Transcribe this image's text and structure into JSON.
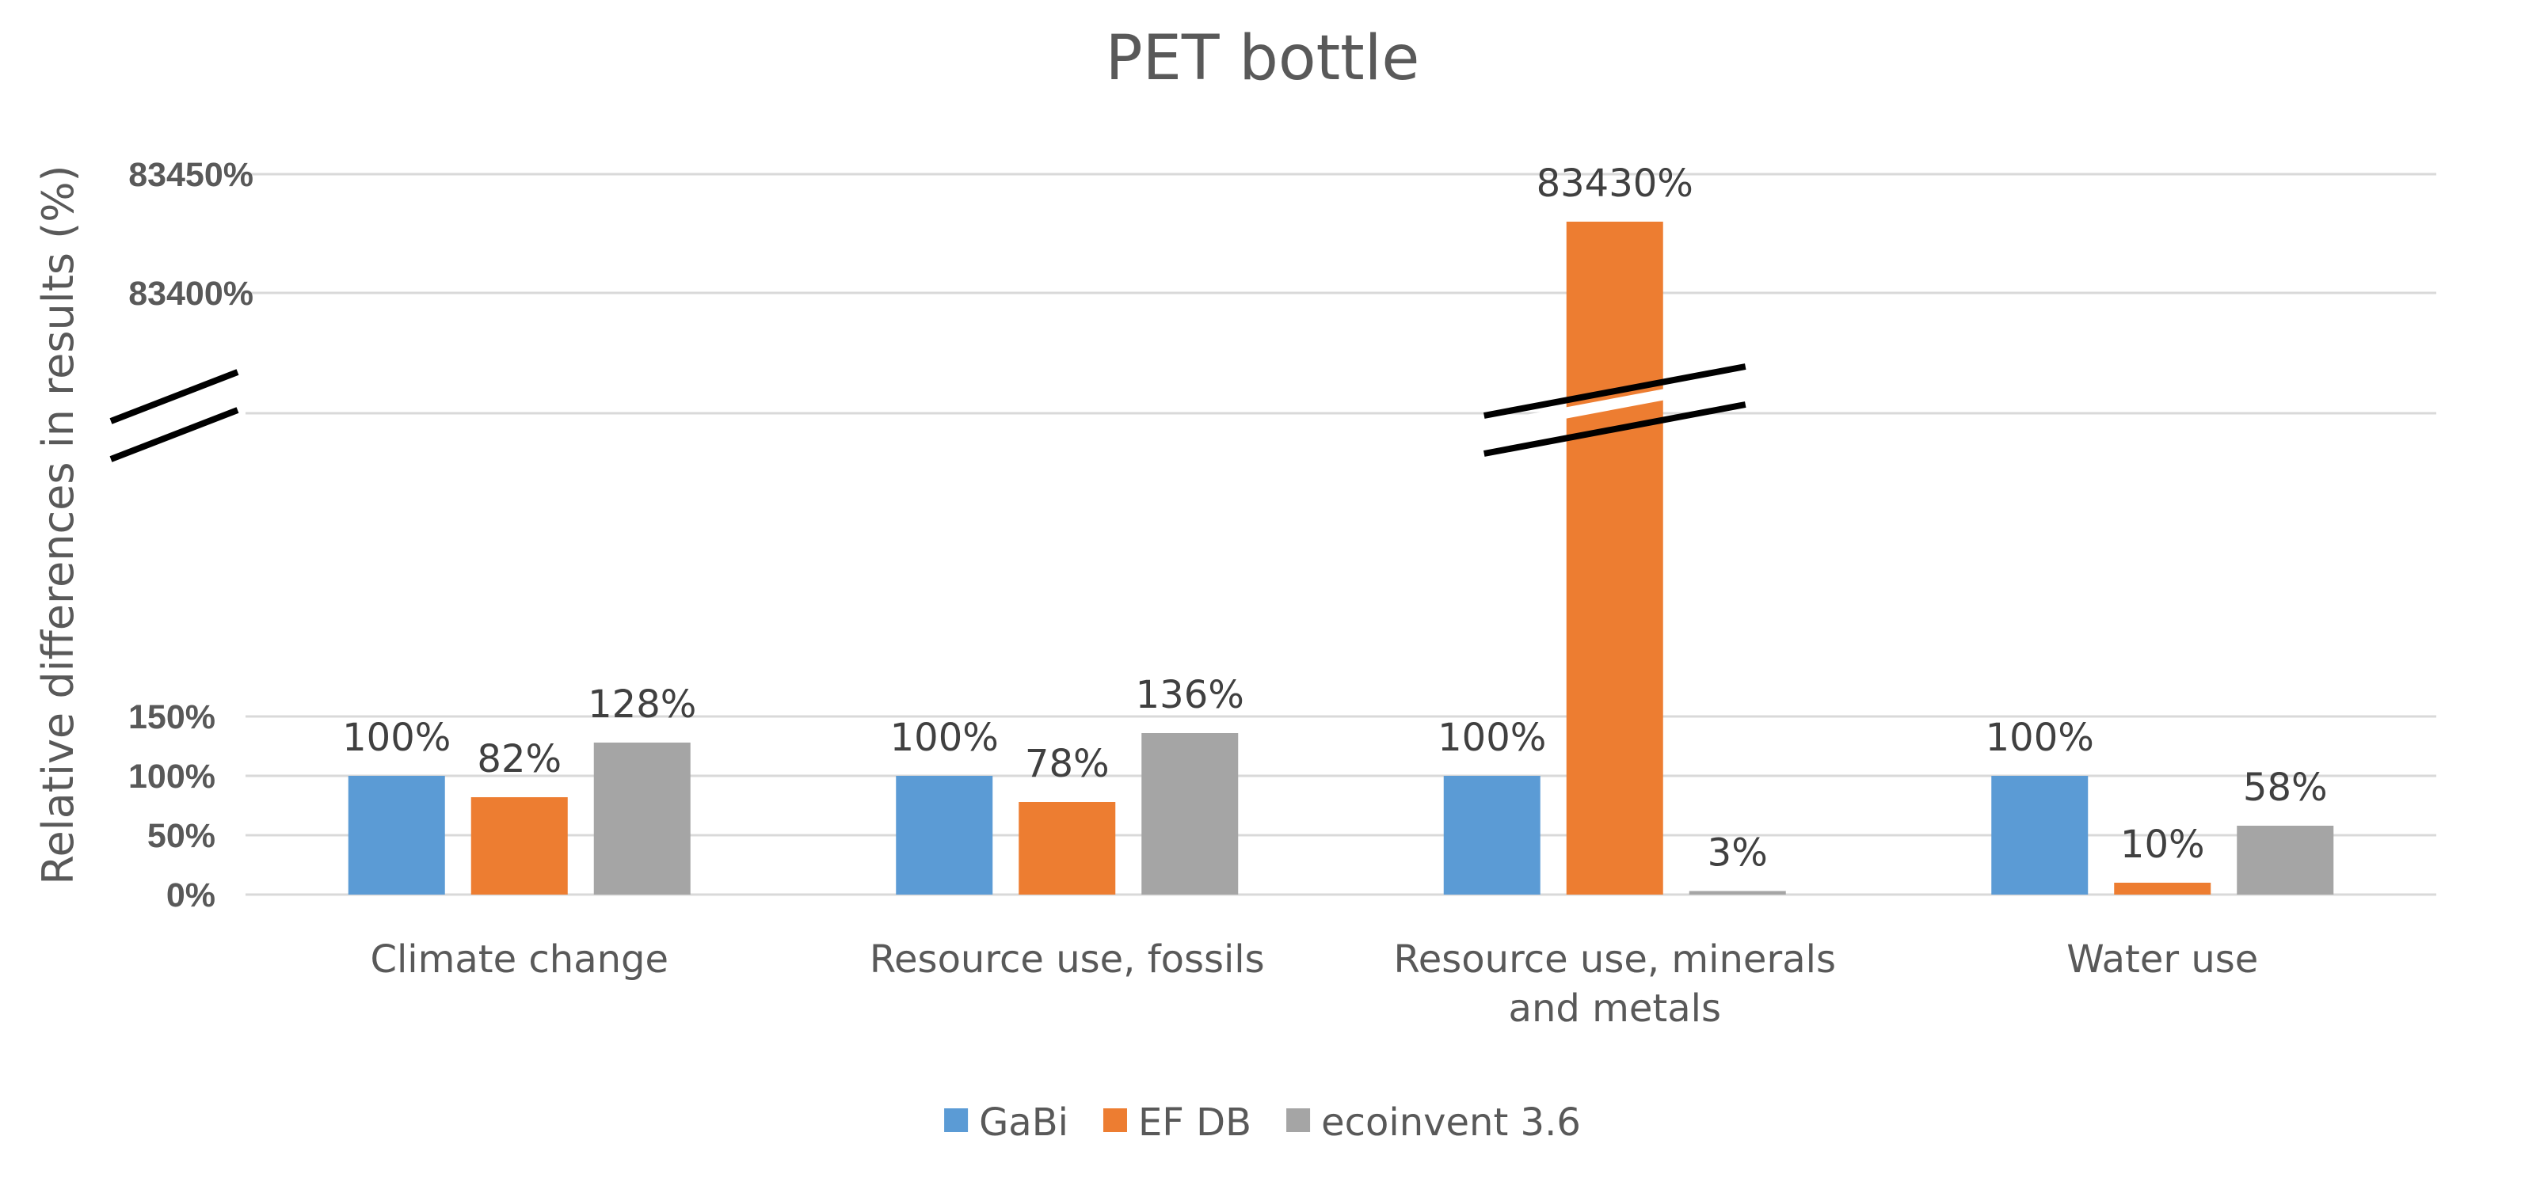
{
  "chart_data": {
    "type": "bar",
    "title": "PET bottle",
    "xlabel": "",
    "ylabel": "Relative differences in results (%)",
    "axis_break": true,
    "ylim_lower": [
      0,
      150
    ],
    "ylim_upper": [
      83400,
      83450
    ],
    "y_ticks_lower": [
      0,
      50,
      100,
      150
    ],
    "y_ticks_upper": [
      83400,
      83450
    ],
    "y_tick_labels_lower": [
      "0%",
      "50%",
      "100%",
      "150%"
    ],
    "y_tick_labels_upper": [
      "83400%",
      "83450%"
    ],
    "categories": [
      [
        "Climate change"
      ],
      [
        "Resource use, fossils"
      ],
      [
        "Resource use, minerals",
        "and metals"
      ],
      [
        "Water use"
      ]
    ],
    "series": [
      {
        "name": "GaBi",
        "color": "#5b9bd5",
        "values": [
          100,
          100,
          100,
          100
        ],
        "labels": [
          "100%",
          "100%",
          "100%",
          "100%"
        ]
      },
      {
        "name": "EF DB",
        "color": "#ed7d31",
        "values": [
          82,
          78,
          83430,
          10
        ],
        "labels": [
          "82%",
          "78%",
          "83430%",
          "10%"
        ]
      },
      {
        "name": "ecoinvent 3.6",
        "color": "#a5a5a5",
        "values": [
          128,
          136,
          3,
          58
        ],
        "labels": [
          "128%",
          "136%",
          "3%",
          "58%"
        ]
      }
    ],
    "grid": true,
    "legend_position": "bottom"
  }
}
